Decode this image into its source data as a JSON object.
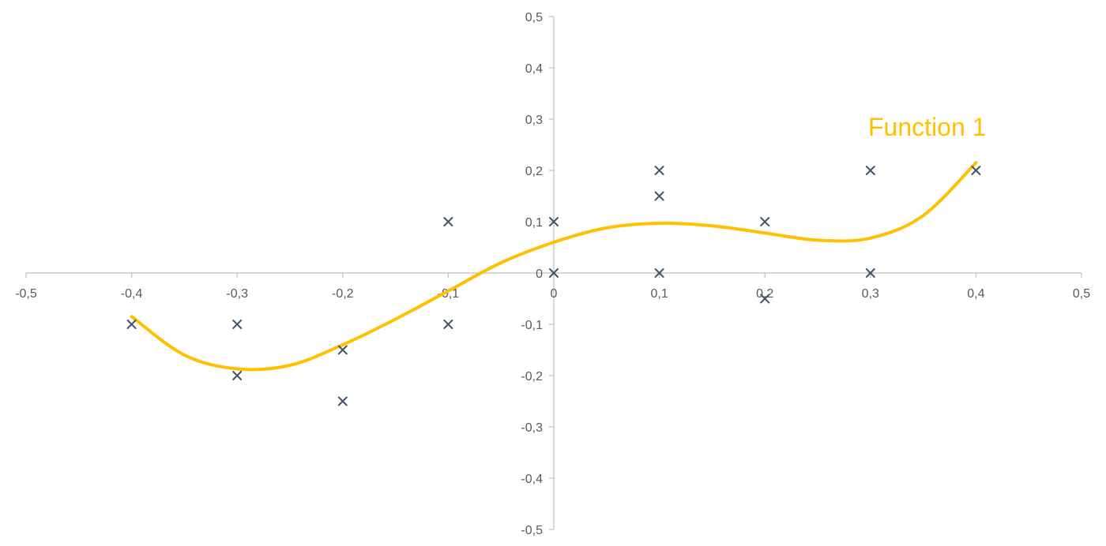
{
  "chart_data": {
    "type": "scatter",
    "title": "",
    "xlabel": "",
    "ylabel": "",
    "xlim": [
      -0.5,
      0.5
    ],
    "ylim": [
      -0.5,
      0.5
    ],
    "grid": false,
    "x_ticks": [
      -0.5,
      -0.4,
      -0.3,
      -0.2,
      -0.1,
      0,
      0.1,
      0.2,
      0.3,
      0.4,
      0.5
    ],
    "y_ticks": [
      -0.5,
      -0.4,
      -0.3,
      -0.2,
      -0.1,
      0,
      0.1,
      0.2,
      0.3,
      0.4,
      0.5
    ],
    "x_tick_labels": [
      "-0,5",
      "-0,4",
      "-0,3",
      "-0,2",
      "-0,1",
      "0",
      "0,1",
      "0,2",
      "0,3",
      "0,4",
      "0,5"
    ],
    "y_tick_labels": [
      "-0,5",
      "-0,4",
      "-0,3",
      "-0,2",
      "-0,1",
      "0",
      "0,1",
      "0,2",
      "0,3",
      "0,4",
      "0,5"
    ],
    "points": {
      "marker": "x",
      "color": "#44546a",
      "x": [
        -0.4,
        -0.3,
        -0.3,
        -0.2,
        -0.2,
        -0.1,
        -0.1,
        0,
        0,
        0.1,
        0.1,
        0.1,
        0.2,
        0.2,
        0.3,
        0.3,
        0.4
      ],
      "y": [
        -0.1,
        -0.1,
        -0.2,
        -0.15,
        -0.25,
        0.1,
        -0.1,
        0.1,
        0,
        0.2,
        0.15,
        0,
        0.1,
        -0.05,
        0.2,
        0,
        0.2
      ]
    },
    "curve": {
      "label": "Function 1",
      "color": "#ffc000",
      "x": [
        -0.4,
        -0.35,
        -0.3,
        -0.25,
        -0.2,
        -0.15,
        -0.1,
        -0.05,
        0,
        0.05,
        0.1,
        0.15,
        0.2,
        0.25,
        0.3,
        0.35,
        0.4
      ],
      "y": [
        -0.085,
        -0.16,
        -0.187,
        -0.18,
        -0.14,
        -0.09,
        -0.035,
        0.02,
        0.06,
        0.088,
        0.097,
        0.092,
        0.078,
        0.064,
        0.068,
        0.112,
        0.215
      ]
    }
  }
}
